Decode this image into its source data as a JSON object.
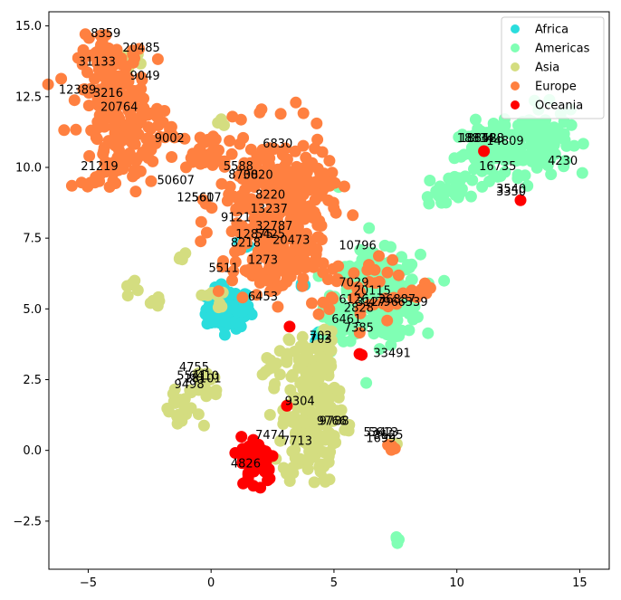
{
  "chart_data": {
    "type": "scatter",
    "title": "",
    "xlabel": "",
    "ylabel": "",
    "xlim": [
      -6.6,
      16.2
    ],
    "ylim": [
      -4.2,
      15.5
    ],
    "xticks": [
      -5,
      0,
      5,
      10,
      15
    ],
    "yticks": [
      -2.5,
      0.0,
      2.5,
      5.0,
      7.5,
      10.0,
      12.5,
      15.0
    ],
    "xtick_labels": [
      "−5",
      "0",
      "5",
      "10",
      "15"
    ],
    "ytick_labels": [
      "−2.5",
      "0.0",
      "2.5",
      "5.0",
      "7.5",
      "10.0",
      "12.5",
      "15.0"
    ],
    "grid": false,
    "legend_position": "top-right",
    "series": [
      {
        "name": "Africa",
        "color": "#2adddd",
        "clusters": [
          {
            "cx": 0.7,
            "cy": 5.0,
            "sx": 0.45,
            "sy": 0.35,
            "n": 120
          },
          {
            "cx": 1.4,
            "cy": 7.2,
            "sx": 0.12,
            "sy": 0.15,
            "n": 4
          },
          {
            "cx": 4.2,
            "cy": 4.0,
            "sx": 0.12,
            "sy": 0.12,
            "n": 5
          },
          {
            "cx": 3.6,
            "cy": 5.9,
            "sx": 0.2,
            "sy": 0.1,
            "n": 3
          }
        ]
      },
      {
        "name": "Americas",
        "color": "#80ffb4",
        "clusters": [
          {
            "cx": 13.2,
            "cy": 11.0,
            "sx": 0.7,
            "sy": 0.6,
            "n": 120
          },
          {
            "cx": 11.3,
            "cy": 10.5,
            "sx": 0.7,
            "sy": 0.45,
            "n": 80
          },
          {
            "cx": 9.6,
            "cy": 9.2,
            "sx": 0.5,
            "sy": 0.4,
            "n": 25
          },
          {
            "cx": 6.8,
            "cy": 5.4,
            "sx": 0.85,
            "sy": 0.75,
            "n": 260
          },
          {
            "cx": 5.2,
            "cy": 4.6,
            "sx": 0.4,
            "sy": 0.4,
            "n": 40
          },
          {
            "cx": 7.6,
            "cy": -3.05,
            "sx": 0.1,
            "sy": 0.08,
            "n": 4
          },
          {
            "cx": 5.2,
            "cy": 9.3,
            "sx": 0.08,
            "sy": 0.08,
            "n": 2
          }
        ]
      },
      {
        "name": "Asia",
        "color": "#d4dd80",
        "clusters": [
          {
            "cx": 4.0,
            "cy": 1.0,
            "sx": 0.55,
            "sy": 1.1,
            "n": 160
          },
          {
            "cx": 4.2,
            "cy": 3.2,
            "sx": 0.5,
            "sy": 0.5,
            "n": 50
          },
          {
            "cx": -1.2,
            "cy": 1.3,
            "sx": 0.4,
            "sy": 0.45,
            "n": 22
          },
          {
            "cx": -0.2,
            "cy": 2.4,
            "sx": 0.3,
            "sy": 0.3,
            "n": 20
          },
          {
            "cx": 2.5,
            "cy": 3.0,
            "sx": 0.18,
            "sy": 0.25,
            "n": 10
          },
          {
            "cx": -3.3,
            "cy": 5.8,
            "sx": 0.15,
            "sy": 0.15,
            "n": 6
          },
          {
            "cx": -2.2,
            "cy": 5.2,
            "sx": 0.15,
            "sy": 0.15,
            "n": 5
          },
          {
            "cx": 0.4,
            "cy": 11.6,
            "sx": 0.12,
            "sy": 0.1,
            "n": 4
          },
          {
            "cx": -3.3,
            "cy": 13.8,
            "sx": 0.3,
            "sy": 0.2,
            "n": 8
          },
          {
            "cx": -1.1,
            "cy": 7.0,
            "sx": 0.12,
            "sy": 0.12,
            "n": 4
          },
          {
            "cx": 5.5,
            "cy": 0.7,
            "sx": 0.12,
            "sy": 0.12,
            "n": 4
          },
          {
            "cx": 0.2,
            "cy": 5.4,
            "sx": 0.3,
            "sy": 0.2,
            "n": 8
          },
          {
            "cx": 7.4,
            "cy": 0.2,
            "sx": 0.1,
            "sy": 0.1,
            "n": 3
          }
        ]
      },
      {
        "name": "Europe",
        "color": "#ff8040",
        "clusters": [
          {
            "cx": -4.0,
            "cy": 12.8,
            "sx": 0.7,
            "sy": 0.85,
            "n": 150
          },
          {
            "cx": -3.0,
            "cy": 11.2,
            "sx": 0.7,
            "sy": 0.6,
            "n": 70
          },
          {
            "cx": -3.8,
            "cy": 9.8,
            "sx": 0.5,
            "sy": 0.4,
            "n": 25
          },
          {
            "cx": 2.5,
            "cy": 8.8,
            "sx": 1.1,
            "sy": 1.2,
            "n": 250
          },
          {
            "cx": 2.6,
            "cy": 6.7,
            "sx": 0.9,
            "sy": 0.7,
            "n": 110
          },
          {
            "cx": -0.2,
            "cy": 10.5,
            "sx": 0.5,
            "sy": 0.35,
            "n": 30
          },
          {
            "cx": 4.3,
            "cy": 9.5,
            "sx": 0.5,
            "sy": 0.4,
            "n": 30
          },
          {
            "cx": -5.0,
            "cy": 9.5,
            "sx": 0.2,
            "sy": 0.1,
            "n": 5
          },
          {
            "cx": 6.4,
            "cy": 5.6,
            "sx": 1.0,
            "sy": 0.6,
            "n": 40
          },
          {
            "cx": 7.3,
            "cy": 0.1,
            "sx": 0.1,
            "sy": 0.1,
            "n": 4
          },
          {
            "cx": 8.7,
            "cy": 5.7,
            "sx": 0.15,
            "sy": 0.15,
            "n": 5
          }
        ]
      },
      {
        "name": "Oceania",
        "color": "#ff0000",
        "clusters": [
          {
            "cx": 1.9,
            "cy": -0.3,
            "sx": 0.35,
            "sy": 0.4,
            "n": 80
          },
          {
            "cx": 6.1,
            "cy": 3.4,
            "sx": 0.05,
            "sy": 0.05,
            "n": 2
          },
          {
            "cx": 3.1,
            "cy": 1.5,
            "sx": 0.05,
            "sy": 0.05,
            "n": 1
          },
          {
            "cx": 12.6,
            "cy": 8.8,
            "sx": 0.05,
            "sy": 0.05,
            "n": 1
          },
          {
            "cx": 11.1,
            "cy": 10.6,
            "sx": 0.05,
            "sy": 0.05,
            "n": 1
          },
          {
            "cx": 3.2,
            "cy": 4.4,
            "sx": 0.05,
            "sy": 0.05,
            "n": 1
          }
        ]
      }
    ],
    "annotations": [
      {
        "text": "8359",
        "x": -4.9,
        "y": 14.6
      },
      {
        "text": "20485",
        "x": -3.6,
        "y": 14.1
      },
      {
        "text": "31133",
        "x": -5.4,
        "y": 13.6
      },
      {
        "text": "9049",
        "x": -3.3,
        "y": 13.1
      },
      {
        "text": "12389",
        "x": -6.2,
        "y": 12.6
      },
      {
        "text": "3216",
        "x": -4.8,
        "y": 12.5
      },
      {
        "text": "20764",
        "x": -4.5,
        "y": 12.0
      },
      {
        "text": "9002",
        "x": -2.3,
        "y": 10.9
      },
      {
        "text": "21219",
        "x": -5.3,
        "y": 9.9
      },
      {
        "text": "6830",
        "x": 2.1,
        "y": 10.7
      },
      {
        "text": "5588",
        "x": 0.5,
        "y": 9.9
      },
      {
        "text": "8708",
        "x": 0.7,
        "y": 9.6
      },
      {
        "text": "3020",
        "x": 1.3,
        "y": 9.6
      },
      {
        "text": "50607",
        "x": -2.2,
        "y": 9.4
      },
      {
        "text": "8220",
        "x": 1.8,
        "y": 8.9
      },
      {
        "text": "12560",
        "x": -1.4,
        "y": 8.8
      },
      {
        "text": "5617",
        "x": -0.8,
        "y": 8.8
      },
      {
        "text": "13237",
        "x": 1.6,
        "y": 8.4
      },
      {
        "text": "9121",
        "x": 0.4,
        "y": 8.1
      },
      {
        "text": "32787",
        "x": 1.8,
        "y": 7.8
      },
      {
        "text": "12875",
        "x": 1.0,
        "y": 7.5
      },
      {
        "text": "5425",
        "x": 1.8,
        "y": 7.5
      },
      {
        "text": "20473",
        "x": 2.5,
        "y": 7.3
      },
      {
        "text": "8218",
        "x": 0.8,
        "y": 7.2
      },
      {
        "text": "10796",
        "x": 5.2,
        "y": 7.1
      },
      {
        "text": "1273",
        "x": 1.5,
        "y": 6.6
      },
      {
        "text": "5511",
        "x": -0.1,
        "y": 6.3
      },
      {
        "text": "7029",
        "x": 5.2,
        "y": 5.8
      },
      {
        "text": "20115",
        "x": 5.8,
        "y": 5.5
      },
      {
        "text": "6453",
        "x": 1.5,
        "y": 5.3
      },
      {
        "text": "6126",
        "x": 5.2,
        "y": 5.2
      },
      {
        "text": "36887",
        "x": 6.8,
        "y": 5.2
      },
      {
        "text": "3127",
        "x": 5.9,
        "y": 5.1
      },
      {
        "text": "4796",
        "x": 6.4,
        "y": 5.1
      },
      {
        "text": "6339",
        "x": 7.6,
        "y": 5.1
      },
      {
        "text": "2828",
        "x": 5.4,
        "y": 4.9
      },
      {
        "text": "6461",
        "x": 4.9,
        "y": 4.5
      },
      {
        "text": "7385",
        "x": 5.4,
        "y": 4.2
      },
      {
        "text": "702",
        "x": 4.0,
        "y": 3.9
      },
      {
        "text": "703",
        "x": 4.0,
        "y": 3.8
      },
      {
        "text": "33491",
        "x": 6.6,
        "y": 3.3
      },
      {
        "text": "4755",
        "x": -1.3,
        "y": 2.8
      },
      {
        "text": "5541",
        "x": -1.4,
        "y": 2.5
      },
      {
        "text": "6410",
        "x": -0.9,
        "y": 2.5
      },
      {
        "text": "18101",
        "x": -1.1,
        "y": 2.4
      },
      {
        "text": "9498",
        "x": -1.5,
        "y": 2.2
      },
      {
        "text": "9304",
        "x": 3.0,
        "y": 1.6
      },
      {
        "text": "9766",
        "x": 4.3,
        "y": 0.9
      },
      {
        "text": "9788",
        "x": 4.4,
        "y": 0.9
      },
      {
        "text": "5342",
        "x": 6.2,
        "y": 0.5
      },
      {
        "text": "5613",
        "x": 6.4,
        "y": 0.5
      },
      {
        "text": "3125",
        "x": 6.6,
        "y": 0.4
      },
      {
        "text": "1699",
        "x": 6.3,
        "y": 0.3
      },
      {
        "text": "7474",
        "x": 1.8,
        "y": 0.4
      },
      {
        "text": "7713",
        "x": 2.9,
        "y": 0.2
      },
      {
        "text": "4826",
        "x": 0.8,
        "y": -0.6
      },
      {
        "text": "18834",
        "x": 10.0,
        "y": 10.9
      },
      {
        "text": "18858",
        "x": 10.1,
        "y": 10.9
      },
      {
        "text": "16428",
        "x": 10.4,
        "y": 10.9
      },
      {
        "text": "14809",
        "x": 11.2,
        "y": 10.8
      },
      {
        "text": "16735",
        "x": 10.9,
        "y": 9.9
      },
      {
        "text": "4230",
        "x": 13.7,
        "y": 10.1
      },
      {
        "text": "3540",
        "x": 11.6,
        "y": 9.1
      },
      {
        "text": "3350",
        "x": 11.6,
        "y": 9.0
      }
    ]
  }
}
